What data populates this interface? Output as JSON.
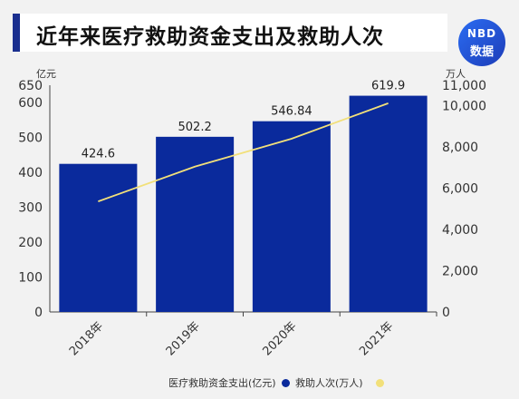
{
  "header": {
    "title": "近年来医疗救助资金支出及救助人次",
    "logo_top": "NBD",
    "logo_bottom": "数据"
  },
  "axes": {
    "left_unit": "亿元",
    "right_unit": "万人"
  },
  "legend": {
    "bar_label": "医疗救助资金支出(亿元)",
    "line_label": "救助人次(万人)"
  },
  "colors": {
    "bar": "#0a2a9c",
    "line": "#f2e07a",
    "accent": "#1a2f8f"
  },
  "chart_data": {
    "type": "bar",
    "categories": [
      "2018年",
      "2019年",
      "2020年",
      "2021年"
    ],
    "series": [
      {
        "name": "医疗救助资金支出(亿元)",
        "type": "bar",
        "axis": "left",
        "values": [
          424.6,
          502.2,
          546.84,
          619.9
        ]
      },
      {
        "name": "救助人次(万人)",
        "type": "line",
        "axis": "right",
        "values": [
          5361,
          7050,
          8404,
          10126
        ]
      }
    ],
    "data_labels": [
      "424.6",
      "502.2",
      "546.84",
      "619.9"
    ],
    "left_axis": {
      "unit": "亿元",
      "range": [
        0,
        650
      ],
      "ticks": [
        0,
        100,
        200,
        300,
        400,
        500,
        600,
        650
      ]
    },
    "right_axis": {
      "unit": "万人",
      "range": [
        0,
        11000
      ],
      "ticks": [
        "0",
        "2,000",
        "4,000",
        "6,000",
        "8,000",
        "10,000",
        "11,000"
      ]
    },
    "grid": false,
    "legend_position": "bottom-right"
  }
}
